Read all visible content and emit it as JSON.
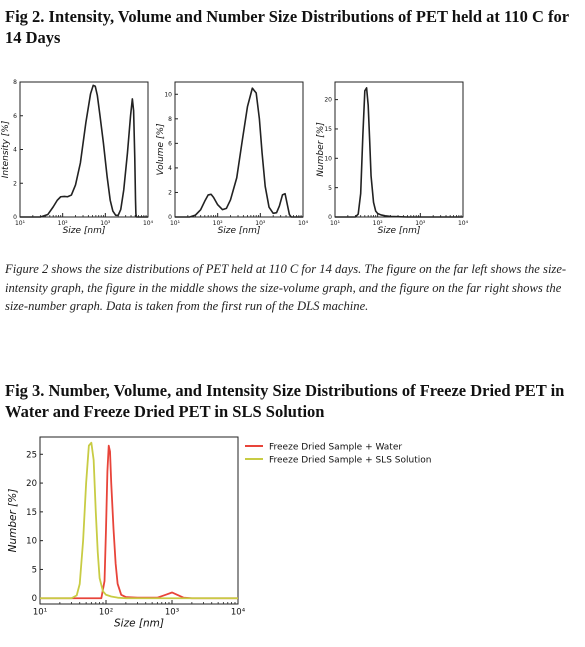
{
  "fig2": {
    "heading": "Fig 2. Intensity, Volume and Number Size Distributions of PET held at 110 C for 14 Days",
    "caption": "Figure 2 shows the size distributions of PET held at 110 C for 14 days. The figure on the far left shows the size-intensity graph, the figure in the middle shows the size-volume graph, and the figure on the far right shows the size-number graph. Data is taken from the first run of the DLS machine."
  },
  "fig3": {
    "heading": "Fig 3. Number, Volume, and Intensity Size Distributions of Freeze Dried PET in Water and Freeze Dried PET in SLS Solution"
  },
  "chart_data": [
    {
      "type": "line",
      "xlabel": "Size [nm]",
      "ylabel": "Intensity [%]",
      "xscale": "log",
      "xlim": [
        10,
        10000
      ],
      "ylim": [
        0,
        8
      ],
      "yticks": [
        0,
        2,
        4,
        6,
        8
      ],
      "xtick_labels": [
        "10¹",
        "10²",
        "10³",
        "10⁴"
      ],
      "series": [
        {
          "color": "#222222",
          "x": [
            10,
            30,
            45,
            60,
            75,
            90,
            110,
            130,
            160,
            200,
            260,
            350,
            450,
            520,
            580,
            650,
            750,
            900,
            1100,
            1300,
            1500,
            1750,
            2000,
            2300,
            2700,
            3300,
            3900,
            4300,
            4600,
            4900,
            5100,
            5200,
            5300,
            5400,
            5500,
            5700,
            10000
          ],
          "y": [
            0,
            0,
            0.15,
            0.6,
            1.0,
            1.2,
            1.22,
            1.2,
            1.3,
            1.9,
            3.2,
            5.6,
            7.3,
            7.8,
            7.75,
            7.2,
            6.0,
            4.4,
            2.4,
            1.0,
            0.35,
            0.1,
            0.1,
            0.45,
            1.6,
            3.8,
            6.0,
            7.0,
            6.3,
            3.5,
            1.0,
            0.2,
            0.05,
            0,
            0,
            0,
            0
          ]
        }
      ]
    },
    {
      "type": "line",
      "xlabel": "Size [nm]",
      "ylabel": "Volume [%]",
      "xscale": "log",
      "xlim": [
        10,
        10000
      ],
      "ylim": [
        0,
        11
      ],
      "yticks": [
        0,
        2,
        4,
        6,
        8,
        10
      ],
      "xtick_labels": [
        "10¹",
        "10²",
        "10³",
        "10⁴"
      ],
      "series": [
        {
          "color": "#222222",
          "x": [
            10,
            22,
            30,
            40,
            50,
            60,
            70,
            80,
            100,
            130,
            160,
            200,
            280,
            380,
            500,
            650,
            800,
            950,
            1100,
            1300,
            1600,
            2000,
            2400,
            2800,
            3300,
            3800,
            4300,
            4800,
            5300,
            6000,
            10000
          ],
          "y": [
            0,
            0,
            0.15,
            0.6,
            1.3,
            1.8,
            1.85,
            1.6,
            1.0,
            0.6,
            0.7,
            1.4,
            3.2,
            6.3,
            9.0,
            10.5,
            10.1,
            8.0,
            5.2,
            2.5,
            0.8,
            0.3,
            0.35,
            0.9,
            1.8,
            1.9,
            1.0,
            0.2,
            0,
            0,
            0
          ]
        }
      ]
    },
    {
      "type": "line",
      "xlabel": "Size [nm]",
      "ylabel": "Number [%]",
      "xscale": "log",
      "xlim": [
        10,
        10000
      ],
      "ylim": [
        0,
        23
      ],
      "yticks": [
        0,
        5,
        10,
        15,
        20
      ],
      "xtick_labels": [
        "10¹",
        "10²",
        "10³",
        "10⁴"
      ],
      "series": [
        {
          "color": "#222222",
          "x": [
            10,
            30,
            35,
            40,
            45,
            50,
            55,
            60,
            65,
            70,
            80,
            90,
            100,
            120,
            150,
            200,
            300,
            500,
            1000,
            10000
          ],
          "y": [
            0,
            0,
            0.5,
            4,
            14,
            21.5,
            22,
            19,
            13,
            7,
            2.5,
            1,
            0.6,
            0.35,
            0.2,
            0.1,
            0.05,
            0,
            0,
            0
          ]
        }
      ]
    },
    {
      "type": "line",
      "xlabel": "Size [nm]",
      "ylabel": "Number [%]",
      "xscale": "log",
      "xlim": [
        10,
        10000
      ],
      "ylim": [
        -1,
        28
      ],
      "yticks": [
        0,
        5,
        10,
        15,
        20,
        25
      ],
      "xtick_labels": [
        "10¹",
        "10²",
        "10³",
        "10⁴"
      ],
      "legend": "top-right, outside plot",
      "series": [
        {
          "name": "Freeze Dried Sample + Water",
          "color": "#e8443a",
          "x": [
            10,
            70,
            85,
            95,
            100,
            105,
            110,
            115,
            120,
            130,
            140,
            150,
            170,
            200,
            300,
            600,
            800,
            1000,
            1200,
            1500,
            2000,
            10000
          ],
          "y": [
            0,
            0,
            0,
            3,
            12,
            22,
            26.5,
            25.5,
            20,
            12,
            6,
            2.5,
            0.6,
            0.2,
            0.1,
            0.1,
            0.6,
            1.0,
            0.6,
            0.1,
            0,
            0
          ]
        },
        {
          "name": "Freeze Dried Sample + SLS Solution",
          "color": "#c8cc44",
          "x": [
            10,
            30,
            36,
            40,
            45,
            50,
            55,
            60,
            65,
            70,
            75,
            80,
            90,
            100,
            120,
            150,
            200,
            500,
            10000
          ],
          "y": [
            0,
            0,
            0.5,
            2.5,
            10,
            20,
            26.5,
            27,
            24,
            15,
            8,
            3.5,
            1.2,
            0.6,
            0.3,
            0.1,
            0,
            0,
            0
          ]
        }
      ]
    }
  ]
}
